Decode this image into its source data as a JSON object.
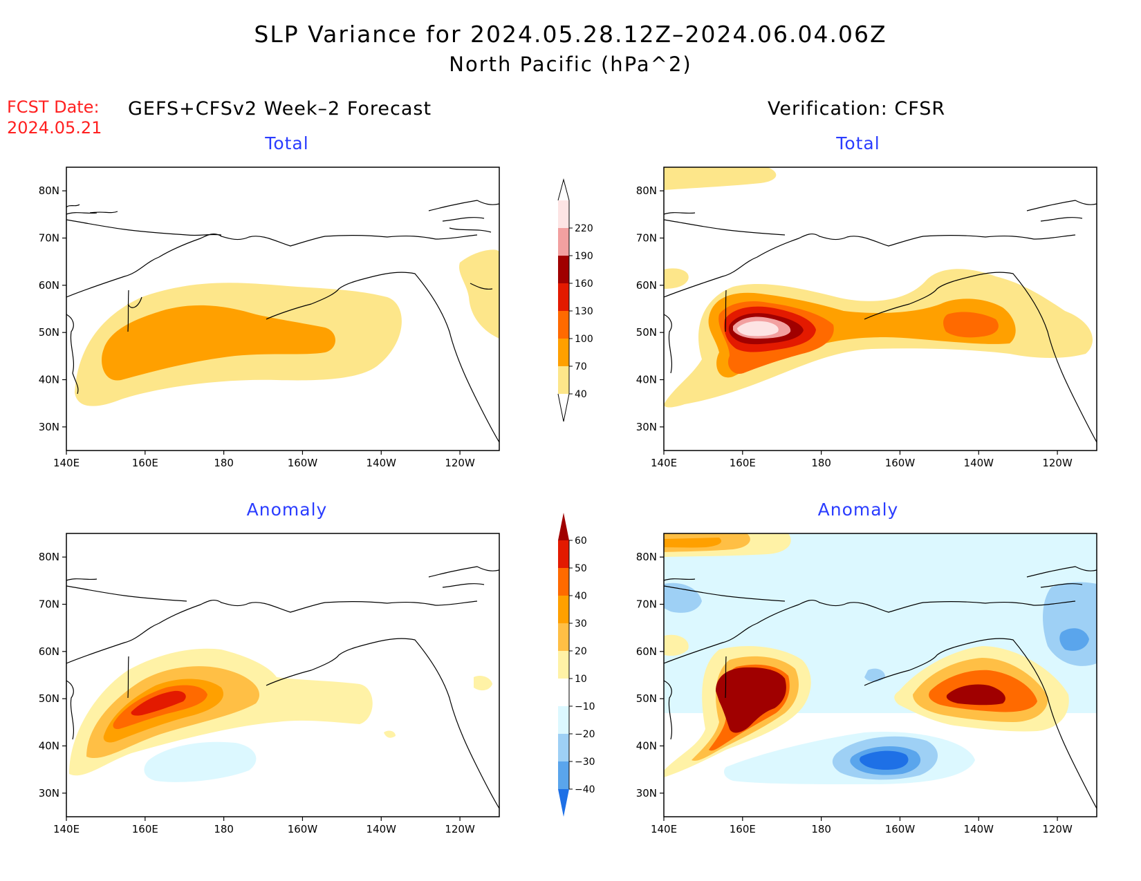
{
  "title": {
    "line1": "SLP Variance for 2024.05.28.12Z–2024.06.04.06Z",
    "line2": "North Pacific (hPa^2)"
  },
  "fcst": {
    "label": "FCST Date:",
    "date": "2024.05.21"
  },
  "columns": {
    "left": "GEFS+CFSv2 Week–2 Forecast",
    "right": "Verification: CFSR"
  },
  "panels": [
    {
      "id": "fcst-total",
      "subtitle": "Total"
    },
    {
      "id": "verif-total",
      "subtitle": "Total"
    },
    {
      "id": "fcst-anom",
      "subtitle": "Anomaly"
    },
    {
      "id": "verif-anom",
      "subtitle": "Anomaly"
    }
  ],
  "axes": {
    "lon_labels": [
      "140E",
      "160E",
      "180",
      "160W",
      "140W",
      "120W"
    ],
    "lat_labels": [
      "80N",
      "70N",
      "60N",
      "50N",
      "40N",
      "30N"
    ],
    "lon_values": [
      140,
      160,
      180,
      200,
      220,
      240
    ],
    "lat_values": [
      80,
      70,
      60,
      50,
      40,
      30
    ],
    "lon_range": [
      140,
      250
    ],
    "lat_range": [
      25,
      85
    ]
  },
  "colorbars": {
    "total": {
      "levels": [
        "40",
        "70",
        "100",
        "130",
        "160",
        "190",
        "220"
      ],
      "colors": [
        "#fde68a",
        "#ffa000",
        "#ff6a00",
        "#e31a00",
        "#a00000",
        "#f2a0a0",
        "#fde4e4"
      ]
    },
    "anomaly": {
      "levels": [
        "60",
        "50",
        "40",
        "30",
        "20",
        "10",
        "−10",
        "−20",
        "−30",
        "−40"
      ],
      "colors": [
        "#a00000",
        "#e31a00",
        "#ff6a00",
        "#ffa000",
        "#ffbf45",
        "#fff2a6",
        "#ffffff",
        "#dcf8ff",
        "#9ed0f5",
        "#5aa5ec",
        "#1e70e6"
      ]
    }
  },
  "fill_colors": {
    "c40": "#fde68a",
    "c70": "#ffa000",
    "c100": "#ff6a00",
    "c130": "#e31a00",
    "c160": "#a00000",
    "c190": "#f2a0a0",
    "c220": "#fde4e4",
    "a10": "#fff2a6",
    "a20": "#ffbf45",
    "a30": "#ffa000",
    "a40": "#ff6a00",
    "a50": "#e31a00",
    "a60": "#a00000",
    "n10": "#dcf8ff",
    "n20": "#9ed0f5",
    "n30": "#5aa5ec",
    "n40": "#1e70e6"
  }
}
